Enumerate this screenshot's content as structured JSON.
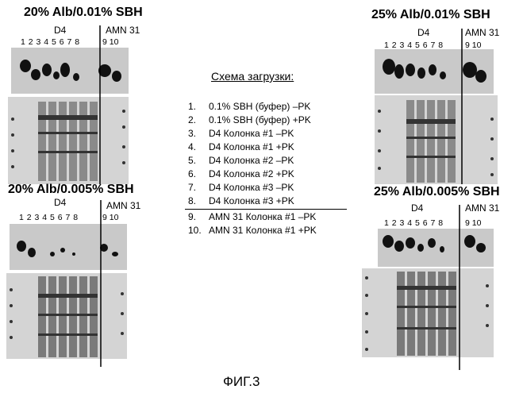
{
  "panels": [
    {
      "title": "20% Alb/0.01% SBH",
      "left_group": "D4",
      "right_group": "AMN 31",
      "lanes_left": "1 2 3 4 5 6 7 8",
      "lanes_right": "9 10",
      "blot_id": "tl"
    },
    {
      "title": "25% Alb/0.01% SBH",
      "left_group": "D4",
      "right_group": "AMN 31",
      "lanes_left": "1 2 3 4 5 6 7 8",
      "lanes_right": "9 10",
      "blot_id": "tr"
    },
    {
      "title": "20% Alb/0.005% SBH",
      "left_group": "D4",
      "right_group": "AMN 31",
      "lanes_left": "1 2 3 4 5 6 7 8",
      "lanes_right": "9 10",
      "blot_id": "bl"
    },
    {
      "title": "25% Alb/0.005% SBH",
      "left_group": "D4",
      "right_group": "AMN 31",
      "lanes_left": "1 2 3 4 5 6 7 8",
      "lanes_right": "9 10",
      "blot_id": "br"
    }
  ],
  "legend": {
    "title": "Схема загрузки:",
    "items": [
      {
        "num": "1.",
        "text": "0.1% SBH (буфер) –PK"
      },
      {
        "num": "2.",
        "text": "0.1% SBH (буфер) +PK"
      },
      {
        "num": "3.",
        "text": "D4   Колонка #1 –PK"
      },
      {
        "num": "4.",
        "text": "D4   Колонка #1 +PK"
      },
      {
        "num": "5.",
        "text": "D4   Колонка #2 –PK"
      },
      {
        "num": "6.",
        "text": "D4   Колонка #2 +PK"
      },
      {
        "num": "7.",
        "text": "D4   Колонка #3 –PK"
      },
      {
        "num": "8.",
        "text": "D4   Колонка #3 +PK"
      },
      {
        "num": "9.",
        "text": "AMN 31  Колонка #1 –PK"
      },
      {
        "num": "10.",
        "text": "AMN 31  Колонка #1 +PK"
      }
    ]
  },
  "figure_label": "ФИГ.3",
  "colors": {
    "ink": "#000000",
    "blot_light": "#d9d9d9",
    "blot_mid": "#a6a6a6",
    "band": "#111111"
  }
}
